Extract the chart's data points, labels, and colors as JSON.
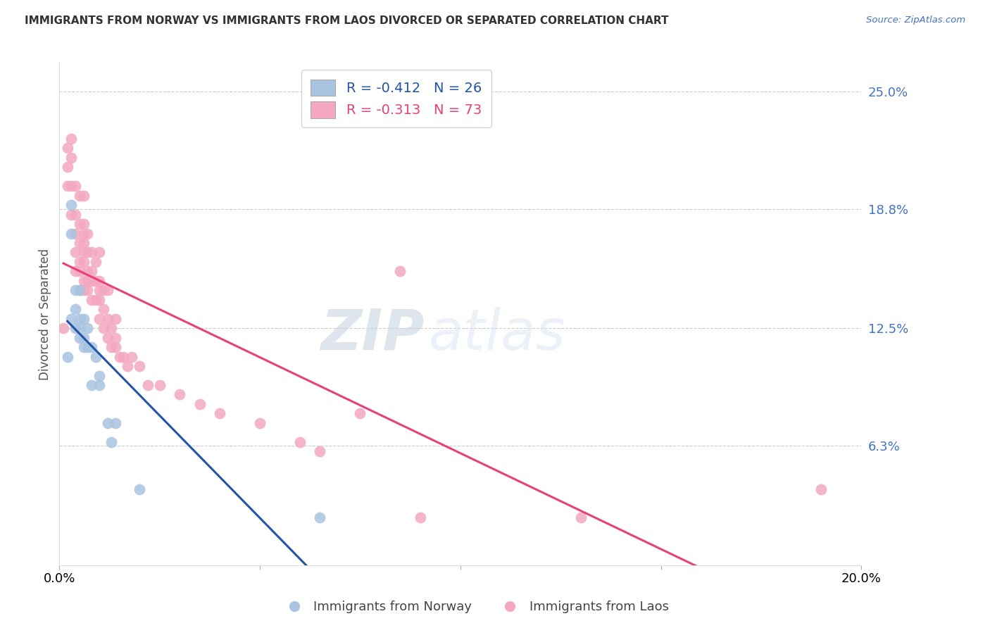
{
  "title": "IMMIGRANTS FROM NORWAY VS IMMIGRANTS FROM LAOS DIVORCED OR SEPARATED CORRELATION CHART",
  "source": "Source: ZipAtlas.com",
  "ylabel": "Divorced or Separated",
  "xlabel_norway": "Immigrants from Norway",
  "xlabel_laos": "Immigrants from Laos",
  "R_norway": -0.412,
  "N_norway": 26,
  "R_laos": -0.313,
  "N_laos": 73,
  "xlim": [
    0.0,
    0.2
  ],
  "ylim": [
    0.0,
    0.265
  ],
  "yticks": [
    0.063,
    0.125,
    0.188,
    0.25
  ],
  "ytick_labels": [
    "6.3%",
    "12.5%",
    "18.8%",
    "25.0%"
  ],
  "color_norway": "#a8c4e0",
  "color_norway_line": "#2255aa",
  "color_laos": "#f4a8bf",
  "color_laos_line": "#e8407a",
  "color_dashed": "#99bbdd",
  "watermark_zip": "ZIP",
  "watermark_atlas": "atlas",
  "norway_x": [
    0.002,
    0.003,
    0.003,
    0.003,
    0.004,
    0.004,
    0.004,
    0.005,
    0.005,
    0.005,
    0.005,
    0.006,
    0.006,
    0.006,
    0.007,
    0.007,
    0.008,
    0.008,
    0.009,
    0.01,
    0.01,
    0.012,
    0.013,
    0.014,
    0.02,
    0.065
  ],
  "norway_y": [
    0.11,
    0.13,
    0.175,
    0.19,
    0.125,
    0.135,
    0.145,
    0.12,
    0.125,
    0.13,
    0.145,
    0.115,
    0.12,
    0.13,
    0.115,
    0.125,
    0.095,
    0.115,
    0.11,
    0.095,
    0.1,
    0.075,
    0.065,
    0.075,
    0.04,
    0.025
  ],
  "laos_x": [
    0.001,
    0.002,
    0.002,
    0.002,
    0.003,
    0.003,
    0.003,
    0.003,
    0.004,
    0.004,
    0.004,
    0.004,
    0.004,
    0.005,
    0.005,
    0.005,
    0.005,
    0.005,
    0.005,
    0.006,
    0.006,
    0.006,
    0.006,
    0.006,
    0.006,
    0.006,
    0.006,
    0.007,
    0.007,
    0.007,
    0.007,
    0.007,
    0.008,
    0.008,
    0.008,
    0.008,
    0.009,
    0.009,
    0.009,
    0.01,
    0.01,
    0.01,
    0.01,
    0.01,
    0.011,
    0.011,
    0.011,
    0.012,
    0.012,
    0.012,
    0.013,
    0.013,
    0.014,
    0.014,
    0.014,
    0.015,
    0.016,
    0.017,
    0.018,
    0.02,
    0.022,
    0.025,
    0.03,
    0.035,
    0.04,
    0.05,
    0.06,
    0.065,
    0.075,
    0.085,
    0.09,
    0.13,
    0.19
  ],
  "laos_y": [
    0.125,
    0.2,
    0.21,
    0.22,
    0.185,
    0.2,
    0.215,
    0.225,
    0.155,
    0.165,
    0.175,
    0.185,
    0.2,
    0.145,
    0.155,
    0.16,
    0.17,
    0.18,
    0.195,
    0.145,
    0.15,
    0.16,
    0.165,
    0.17,
    0.175,
    0.18,
    0.195,
    0.145,
    0.15,
    0.155,
    0.165,
    0.175,
    0.14,
    0.15,
    0.155,
    0.165,
    0.14,
    0.15,
    0.16,
    0.13,
    0.14,
    0.145,
    0.15,
    0.165,
    0.125,
    0.135,
    0.145,
    0.12,
    0.13,
    0.145,
    0.115,
    0.125,
    0.115,
    0.12,
    0.13,
    0.11,
    0.11,
    0.105,
    0.11,
    0.105,
    0.095,
    0.095,
    0.09,
    0.085,
    0.08,
    0.075,
    0.065,
    0.06,
    0.08,
    0.155,
    0.025,
    0.025,
    0.04
  ]
}
